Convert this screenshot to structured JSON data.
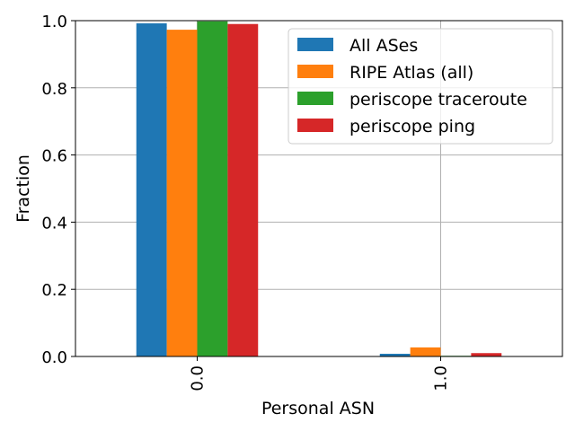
{
  "chart_data": {
    "type": "bar",
    "title": "",
    "xlabel": "Personal ASN",
    "ylabel": "Fraction",
    "categories": [
      "0.0",
      "1.0"
    ],
    "ylim": [
      0,
      1.0
    ],
    "yticks": [
      "0.0",
      "0.2",
      "0.4",
      "0.6",
      "0.8",
      "1.0"
    ],
    "grid": true,
    "legend_position": "top-right",
    "series": [
      {
        "name": "All ASes",
        "color": "#1f77b4",
        "values": [
          0.992,
          0.008
        ]
      },
      {
        "name": "RIPE Atlas (all)",
        "color": "#ff7f0e",
        "values": [
          0.973,
          0.027
        ]
      },
      {
        "name": "periscope traceroute",
        "color": "#2ca02c",
        "values": [
          0.998,
          0.002
        ]
      },
      {
        "name": "periscope ping",
        "color": "#d62728",
        "values": [
          0.99,
          0.01
        ]
      }
    ]
  }
}
